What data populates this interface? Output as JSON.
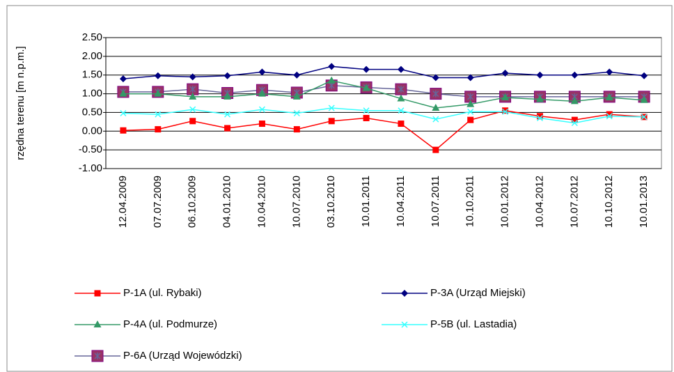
{
  "chart_data": {
    "type": "line",
    "y_label": "rzędna terenu [m n.p.m.]",
    "categories": [
      "12.04.2009",
      "07.07.2009",
      "06.10.2009",
      "04.01.2010",
      "10.04.2010",
      "10.07.2010",
      "03.10.2010",
      "10.01.2011",
      "10.04.2011",
      "10.07.2011",
      "10.10.2011",
      "10.01.2012",
      "10.04.2012",
      "10.07.2012",
      "10.10.2012",
      "10.01.2013"
    ],
    "ylim": [
      -1,
      2.5
    ],
    "yticks": [
      {
        "value": -1,
        "label": "-1.00"
      },
      {
        "value": -0.5,
        "label": "-0.50"
      },
      {
        "value": 0,
        "label": "0.00"
      },
      {
        "value": 0.5,
        "label": "0.50"
      },
      {
        "value": 1,
        "label": "1.00"
      },
      {
        "value": 1.5,
        "label": "1.50"
      },
      {
        "value": 2,
        "label": "2.00"
      },
      {
        "value": 2.5,
        "label": "2.50"
      }
    ],
    "grid": true,
    "legend": "bottom",
    "series": [
      {
        "name": "P-1A (ul. Rybaki)",
        "color": "#ff0000",
        "marker": "square",
        "values": [
          0.02,
          0.05,
          0.27,
          0.08,
          0.2,
          0.05,
          0.27,
          0.35,
          0.2,
          -0.5,
          0.3,
          0.55,
          0.4,
          0.3,
          0.45,
          0.38
        ]
      },
      {
        "name": "P-3A (Urząd Miejski)",
        "color": "#000080",
        "marker": "diamond",
        "values": [
          1.4,
          1.48,
          1.45,
          1.48,
          1.58,
          1.5,
          1.73,
          1.65,
          1.65,
          1.43,
          1.43,
          1.55,
          1.5,
          1.5,
          1.58,
          1.48
        ]
      },
      {
        "name": "P-4A (ul. Podmurze)",
        "color": "#339966",
        "marker": "triangle",
        "values": [
          1.0,
          1.0,
          0.92,
          0.92,
          1.0,
          0.92,
          1.35,
          1.15,
          0.87,
          0.62,
          0.72,
          0.9,
          0.85,
          0.8,
          0.9,
          0.83
        ]
      },
      {
        "name": "P-5B (ul. Lastadia)",
        "color": "#33ffff",
        "marker": "x",
        "values": [
          0.48,
          0.45,
          0.58,
          0.45,
          0.58,
          0.48,
          0.62,
          0.55,
          0.55,
          0.32,
          0.52,
          0.52,
          0.35,
          0.22,
          0.4,
          0.38
        ]
      },
      {
        "name": "P-6A (Urząd Wojewódzki)",
        "color": "#666699",
        "marker": "bigsquare",
        "marker_color": "#993366",
        "values": [
          1.05,
          1.05,
          1.12,
          1.02,
          1.1,
          1.03,
          1.22,
          1.17,
          1.12,
          1.0,
          0.92,
          0.92,
          0.92,
          0.92,
          0.92,
          0.92
        ]
      }
    ]
  }
}
